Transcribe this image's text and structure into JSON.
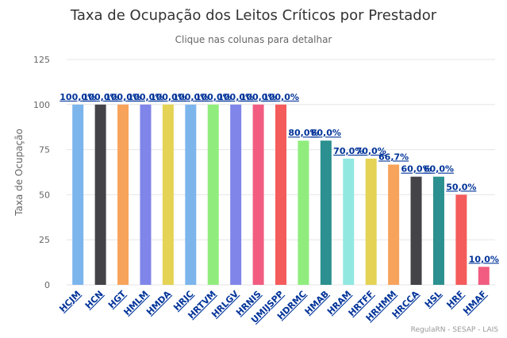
{
  "chart_data": {
    "type": "bar",
    "title": "Taxa de Ocupação dos Leitos Críticos por Prestador",
    "subtitle": "Clique nas colunas para detalhar",
    "xlabel": "",
    "ylabel": "Taxa de Ocupação",
    "ylim": [
      0,
      125
    ],
    "yticks": [
      "0",
      "25",
      "50",
      "75",
      "100",
      "125"
    ],
    "grid": true,
    "legend": "none",
    "categories": [
      "HCJM",
      "HCN",
      "HGT",
      "HMLM",
      "HMDA",
      "HRJC",
      "HRTVM",
      "HRLGV",
      "HRNIS",
      "UMIJSPP",
      "HDRMC",
      "HMAB",
      "HRAM",
      "HRTFF",
      "HRHMM",
      "HRCCA",
      "HSL",
      "HRF",
      "HMAF"
    ],
    "values": [
      100.0,
      100.0,
      100.0,
      100.0,
      100.0,
      100.0,
      100.0,
      100.0,
      100.0,
      100.0,
      80.0,
      80.0,
      70.0,
      70.0,
      66.7,
      60.0,
      60.0,
      50.0,
      10.0
    ],
    "value_labels": [
      "100,0%",
      "100,0%",
      "100,0%",
      "100,0%",
      "100,0%",
      "100,0%",
      "100,0%",
      "100,0%",
      "100,0%",
      "100,0%",
      "80,0%",
      "80,0%",
      "70,0%",
      "70,0%",
      "66,7%",
      "60,0%",
      "60,0%",
      "50,0%",
      "10,0%"
    ],
    "colors": [
      "#7cb5ec",
      "#434348",
      "#f7a35c",
      "#8085e9",
      "#e4d354",
      "#7cb5ec",
      "#90ed7d",
      "#8085e9",
      "#f15c80",
      "#f45b5b",
      "#90ed7d",
      "#2b908f",
      "#91e8e1",
      "#e4d354",
      "#f7a35c",
      "#434348",
      "#2b908f",
      "#f45b5b",
      "#f15c80"
    ]
  },
  "credit": "RegulaRN - SESAP - LAIS"
}
